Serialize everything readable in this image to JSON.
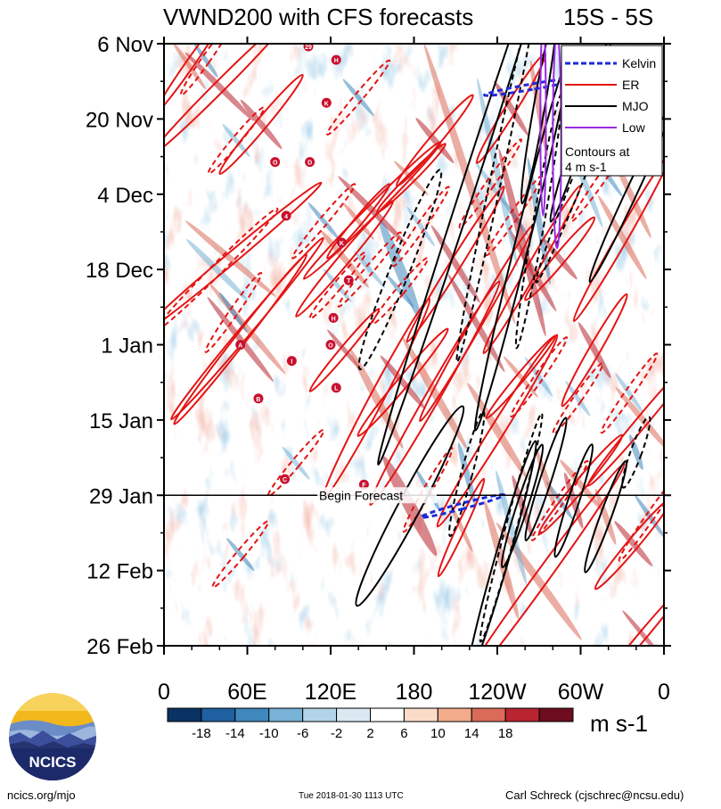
{
  "chart_data": {
    "type": "heatmap",
    "title": "VWND200 with CFS forecasts",
    "region": "15S - 5S",
    "y_axis": {
      "ticks": [
        "6 Nov",
        "20 Nov",
        "4 Dec",
        "18 Dec",
        "1 Jan",
        "15 Jan",
        "29 Jan",
        "12 Feb",
        "26 Feb"
      ],
      "range_days": [
        0,
        112
      ],
      "start": "6 Nov 2017",
      "end": "26 Feb 2018"
    },
    "x_axis": {
      "ticks": [
        "0",
        "60E",
        "120E",
        "180",
        "120W",
        "60W",
        "0"
      ],
      "range_lon": [
        0,
        360
      ]
    },
    "colorbar": {
      "ticks": [
        "-18",
        "-14",
        "-10",
        "-6",
        "-2",
        "2",
        "6",
        "10",
        "14",
        "18"
      ],
      "levels": [
        -22,
        -18,
        -14,
        -10,
        -6,
        -2,
        2,
        6,
        10,
        14,
        18,
        22
      ],
      "colors": [
        "#0a3364",
        "#1f60a0",
        "#3f88bd",
        "#78b2d6",
        "#b3d4e8",
        "#dbe9f3",
        "#ffffff",
        "#fbdcc9",
        "#f2ab8b",
        "#db6b59",
        "#b8242f",
        "#6e0c20"
      ],
      "unit": "m s-1"
    },
    "legend": {
      "items": [
        {
          "name": "Kelvin",
          "color": "#1f2bd6"
        },
        {
          "name": "ER",
          "color": "#e41414"
        },
        {
          "name": "MJO",
          "color": "#000000"
        },
        {
          "name": "Low",
          "color": "#9a2be0"
        }
      ],
      "note_line1": "Contours at",
      "note_line2": "4 m s-1",
      "position": "top-right"
    },
    "forecast": {
      "label": "Begin Forecast",
      "day": 84
    },
    "series": [
      {
        "name": "ER",
        "style": "solid",
        "contours": [
          {
            "lon": 18,
            "day": 4,
            "rx": 3,
            "ry": 11,
            "tilt": 35
          },
          {
            "lon": 40,
            "day": 8,
            "rx": 4,
            "ry": 18,
            "tilt": 45
          },
          {
            "lon": 48,
            "day": 40,
            "rx": 4,
            "ry": 22,
            "tilt": 50
          },
          {
            "lon": 55,
            "day": 55,
            "rx": 4,
            "ry": 20,
            "tilt": 38
          },
          {
            "lon": 60,
            "day": 53,
            "rx": 4,
            "ry": 22,
            "tilt": 40
          },
          {
            "lon": 70,
            "day": 15,
            "rx": 4,
            "ry": 12,
            "tilt": 40
          },
          {
            "lon": 130,
            "day": 40,
            "rx": 4,
            "ry": 14,
            "tilt": 40
          },
          {
            "lon": 130,
            "day": 57,
            "rx": 3,
            "ry": 10,
            "tilt": 40
          },
          {
            "lon": 140,
            "day": 33,
            "rx": 3,
            "ry": 9,
            "tilt": 40
          },
          {
            "lon": 150,
            "day": 31,
            "rx": 4,
            "ry": 18,
            "tilt": 45
          },
          {
            "lon": 153,
            "day": 66,
            "rx": 5,
            "ry": 21,
            "tilt": 28
          },
          {
            "lon": 172,
            "day": 63,
            "rx": 4,
            "ry": 13,
            "tilt": 40
          },
          {
            "lon": 178,
            "day": 25,
            "rx": 3,
            "ry": 9,
            "tilt": 45
          },
          {
            "lon": 195,
            "day": 18,
            "rx": 4,
            "ry": 11,
            "tilt": 40
          },
          {
            "lon": 195,
            "day": 65,
            "rx": 5,
            "ry": 24,
            "tilt": 30
          },
          {
            "lon": 210,
            "day": 41,
            "rx": 4,
            "ry": 17,
            "tilt": 32
          },
          {
            "lon": 214,
            "day": 90,
            "rx": 3,
            "ry": 10,
            "tilt": 25
          },
          {
            "lon": 225,
            "day": 52,
            "rx": 4,
            "ry": 21,
            "tilt": 30
          },
          {
            "lon": 240,
            "day": 72,
            "rx": 5,
            "ry": 21,
            "tilt": 32
          },
          {
            "lon": 250,
            "day": 12,
            "rx": 4,
            "ry": 12,
            "tilt": 32
          },
          {
            "lon": 257,
            "day": 62,
            "rx": 3,
            "ry": 10,
            "tilt": 40
          },
          {
            "lon": 265,
            "day": 42,
            "rx": 4,
            "ry": 18,
            "tilt": 30
          },
          {
            "lon": 270,
            "day": 100,
            "rx": 5,
            "ry": 27,
            "tilt": 36
          },
          {
            "lon": 285,
            "day": 40,
            "rx": 4,
            "ry": 10,
            "tilt": 40
          },
          {
            "lon": 300,
            "day": 82,
            "rx": 4,
            "ry": 12,
            "tilt": 40
          },
          {
            "lon": 310,
            "day": 57,
            "rx": 4,
            "ry": 12,
            "tilt": 30
          },
          {
            "lon": 330,
            "day": 36,
            "rx": 4,
            "ry": 18,
            "tilt": 30
          },
          {
            "lon": 338,
            "day": 93,
            "rx": 4,
            "ry": 11,
            "tilt": 40
          },
          {
            "lon": 345,
            "day": 70,
            "rx": 4,
            "ry": 16,
            "tilt": 40
          },
          {
            "lon": 345,
            "day": 110,
            "rx": 3,
            "ry": 12,
            "tilt": 40
          }
        ]
      },
      {
        "name": "ER",
        "style": "dashed",
        "contours": [
          {
            "lon": 30,
            "day": 3,
            "rx": 3,
            "ry": 8,
            "tilt": 35
          },
          {
            "lon": 38,
            "day": 42,
            "rx": 4,
            "ry": 16,
            "tilt": 45
          },
          {
            "lon": 50,
            "day": 50,
            "rx": 3,
            "ry": 9,
            "tilt": 35
          },
          {
            "lon": 52,
            "day": 18,
            "rx": 3,
            "ry": 8,
            "tilt": 40
          },
          {
            "lon": 55,
            "day": 95,
            "rx": 3,
            "ry": 8,
            "tilt": 40
          },
          {
            "lon": 95,
            "day": 78,
            "rx": 3,
            "ry": 8,
            "tilt": 40
          },
          {
            "lon": 115,
            "day": 33,
            "rx": 3,
            "ry": 9,
            "tilt": 40
          },
          {
            "lon": 125,
            "day": 45,
            "rx": 3,
            "ry": 8,
            "tilt": 40
          },
          {
            "lon": 140,
            "day": 10,
            "rx": 3,
            "ry": 9,
            "tilt": 40
          },
          {
            "lon": 148,
            "day": 42,
            "rx": 3,
            "ry": 9,
            "tilt": 40
          },
          {
            "lon": 170,
            "day": 46,
            "rx": 3,
            "ry": 8,
            "tilt": 40
          },
          {
            "lon": 185,
            "day": 34,
            "rx": 3,
            "ry": 9,
            "tilt": 35
          },
          {
            "lon": 190,
            "day": 83,
            "rx": 3,
            "ry": 9,
            "tilt": 30
          },
          {
            "lon": 235,
            "day": 26,
            "rx": 3,
            "ry": 10,
            "tilt": 35
          },
          {
            "lon": 252,
            "day": 32,
            "rx": 3,
            "ry": 9,
            "tilt": 35
          },
          {
            "lon": 270,
            "day": 62,
            "rx": 3,
            "ry": 9,
            "tilt": 35
          },
          {
            "lon": 285,
            "day": 85,
            "rx": 3,
            "ry": 9,
            "tilt": 35
          },
          {
            "lon": 298,
            "day": 66,
            "rx": 3,
            "ry": 8,
            "tilt": 35
          },
          {
            "lon": 318,
            "day": 24,
            "rx": 3,
            "ry": 11,
            "tilt": 35
          },
          {
            "lon": 335,
            "day": 65,
            "rx": 3,
            "ry": 9,
            "tilt": 35
          },
          {
            "lon": 350,
            "day": 88,
            "rx": 3,
            "ry": 10,
            "tilt": 35
          }
        ]
      },
      {
        "name": "MJO",
        "style": "solid",
        "contours": [
          {
            "lon": 220,
            "day": 26,
            "rx": 5,
            "ry": 55,
            "tilt": 18
          },
          {
            "lon": 258,
            "day": 37,
            "rx": 5,
            "ry": 36,
            "tilt": 14
          },
          {
            "lon": 270,
            "day": 12,
            "rx": 4,
            "ry": 18,
            "tilt": 10
          },
          {
            "lon": 300,
            "day": 16,
            "rx": 4,
            "ry": 18,
            "tilt": 18
          },
          {
            "lon": 336,
            "day": 28,
            "rx": 4,
            "ry": 18,
            "tilt": 25
          },
          {
            "lon": 177,
            "day": 86,
            "rx": 8,
            "ry": 21,
            "tilt": 28
          },
          {
            "lon": 243,
            "day": 96,
            "rx": 5,
            "ry": 23,
            "tilt": 16
          },
          {
            "lon": 258,
            "day": 86,
            "rx": 4,
            "ry": 12,
            "tilt": 18
          },
          {
            "lon": 275,
            "day": 81,
            "rx": 4,
            "ry": 12,
            "tilt": 18
          },
          {
            "lon": 295,
            "day": 85,
            "rx": 4,
            "ry": 11,
            "tilt": 18
          },
          {
            "lon": 318,
            "day": 88,
            "rx": 4,
            "ry": 11,
            "tilt": 20
          }
        ]
      },
      {
        "name": "MJO",
        "style": "dashed",
        "contours": [
          {
            "lon": 170,
            "day": 42,
            "rx": 7,
            "ry": 20,
            "tilt": 22
          },
          {
            "lon": 240,
            "day": 24,
            "rx": 4,
            "ry": 36,
            "tilt": 12
          },
          {
            "lon": 270,
            "day": 33,
            "rx": 4,
            "ry": 24,
            "tilt": 10
          },
          {
            "lon": 250,
            "day": 90,
            "rx": 4,
            "ry": 22,
            "tilt": 15
          },
          {
            "lon": 218,
            "day": 80,
            "rx": 4,
            "ry": 12,
            "tilt": 15
          },
          {
            "lon": 300,
            "day": 24,
            "rx": 4,
            "ry": 22,
            "tilt": 22
          },
          {
            "lon": 340,
            "day": 76,
            "rx": 4,
            "ry": 7,
            "tilt": 20
          }
        ]
      },
      {
        "name": "Kelvin",
        "style": "dashed",
        "contours": [
          {
            "lon": 265,
            "day": 8,
            "rx": 2,
            "ry": 9,
            "tilt": 80
          },
          {
            "lon": 215,
            "day": 86,
            "rx": 2,
            "ry": 8,
            "tilt": 75
          }
        ]
      },
      {
        "name": "Low",
        "style": "solid",
        "contours": [
          {
            "lon": 283,
            "day": 18,
            "rx": 3,
            "ry": 20,
            "tilt": 0
          },
          {
            "lon": 273,
            "day": 14,
            "rx": 2,
            "ry": 18,
            "tilt": 0
          }
        ]
      }
    ],
    "storm_markers": [
      {
        "label": "29",
        "lon": 104,
        "day": 0.5
      },
      {
        "label": "H",
        "lon": 124,
        "day": 3
      },
      {
        "label": "K",
        "lon": 117,
        "day": 11
      },
      {
        "label": "O",
        "lon": 80,
        "day": 22
      },
      {
        "label": "D",
        "lon": 105,
        "day": 22
      },
      {
        "label": "4",
        "lon": 88,
        "day": 32
      },
      {
        "label": "K",
        "lon": 128,
        "day": 37
      },
      {
        "label": "T",
        "lon": 133,
        "day": 44
      },
      {
        "label": "H",
        "lon": 122,
        "day": 51
      },
      {
        "label": "A",
        "lon": 55,
        "day": 56
      },
      {
        "label": "O",
        "lon": 120,
        "day": 56
      },
      {
        "label": "I",
        "lon": 92,
        "day": 59
      },
      {
        "label": "B",
        "lon": 68,
        "day": 66
      },
      {
        "label": "L",
        "lon": 124,
        "day": 64
      },
      {
        "label": "F",
        "lon": 144,
        "day": 82
      },
      {
        "label": "C",
        "lon": 87,
        "day": 81
      }
    ]
  },
  "footer": {
    "left": "ncics.org/mjo",
    "center": "Tue 2018-01-30 1113 UTC",
    "right": "Carl Schreck (cjschrec@ncsu.edu)",
    "logo_text": "NCICS"
  }
}
